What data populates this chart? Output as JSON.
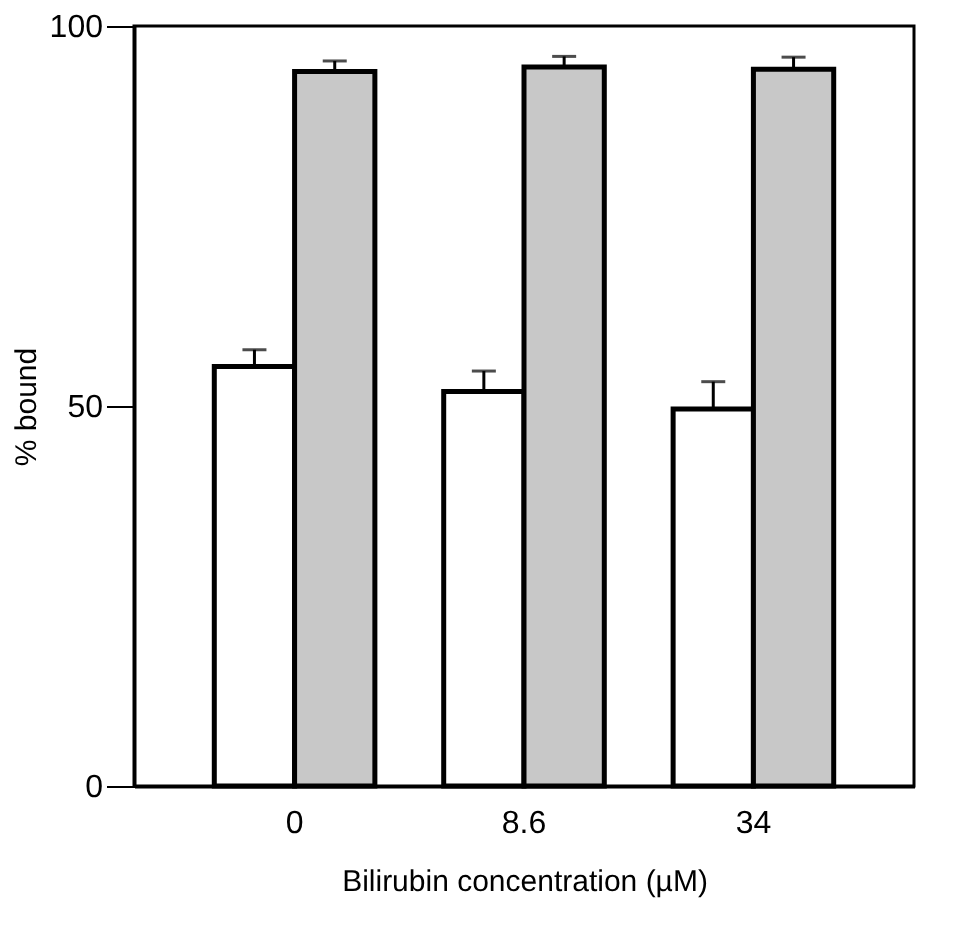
{
  "chart_data": {
    "type": "bar",
    "xlabel": "Bilirubin concentration (µM)",
    "ylabel": "% bound",
    "categories": [
      "0",
      "8.6",
      "34"
    ],
    "series": [
      {
        "color": "#ffffff",
        "values": [
          55.2,
          51.9,
          49.6
        ],
        "errors": [
          [
            55.2,
            57.4
          ],
          [
            51.9,
            54.6
          ],
          [
            49.6,
            53.2
          ]
        ]
      },
      {
        "color": "#c8c8c8",
        "values": [
          94.0,
          94.6,
          94.3
        ],
        "errors": [
          [
            94.0,
            95.4
          ],
          [
            94.6,
            96.0
          ],
          [
            94.3,
            95.9
          ]
        ]
      }
    ],
    "ylim": [
      0,
      100
    ],
    "yticks": [
      0,
      50,
      100
    ],
    "grid": false
  }
}
